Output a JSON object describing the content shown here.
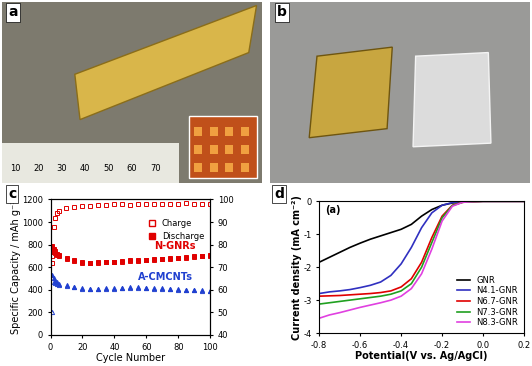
{
  "photos": [
    {
      "panel_label": "a",
      "ruler_labels": [
        10,
        20,
        30,
        40,
        50,
        60,
        70
      ]
    },
    {
      "panel_label": "b"
    }
  ],
  "chart_data": [
    {
      "type": "scatter",
      "panel_label": "c",
      "x_label": "Cycle Number",
      "y_label": "Specific Capacity / mAh g⁻¹",
      "x": [
        1,
        2,
        3,
        4,
        5,
        10,
        15,
        20,
        25,
        30,
        35,
        40,
        45,
        50,
        55,
        60,
        65,
        70,
        75,
        80,
        85,
        90,
        95,
        100
      ],
      "xlim": [
        0,
        100
      ],
      "xticks": [
        0,
        20,
        40,
        60,
        80,
        100
      ],
      "ylim": [
        0,
        1200
      ],
      "yticks": [
        0,
        200,
        400,
        600,
        800,
        1000,
        1200
      ],
      "y2lim": [
        40,
        100
      ],
      "y2ticks": [
        40,
        50,
        60,
        70,
        80,
        90,
        100
      ],
      "legend": "upper right",
      "annotations": [
        {
          "text": "N-GNRs",
          "color": "#e00000"
        },
        {
          "text": "A-CMCNTs",
          "color": "#2040d0"
        }
      ],
      "series": [
        {
          "name": "Charge",
          "color": "#e00000",
          "marker": "open square",
          "values": [
            700,
            735,
            725,
            710,
            698,
            672,
            652,
            640,
            635,
            640,
            645,
            645,
            650,
            655,
            655,
            660,
            665,
            670,
            675,
            680,
            685,
            690,
            695,
            700
          ]
        },
        {
          "name": "Discharge",
          "color": "#e00000",
          "marker": "square",
          "values": [
            790,
            760,
            740,
            720,
            705,
            680,
            660,
            645,
            640,
            645,
            650,
            650,
            655,
            660,
            660,
            665,
            670,
            675,
            680,
            685,
            690,
            695,
            700,
            705
          ]
        },
        {
          "color": "#2040d0",
          "marker": "open triangle",
          "values": [
            200,
            470,
            460,
            450,
            445,
            432,
            420,
            410,
            405,
            405,
            408,
            410,
            413,
            415,
            415,
            413,
            410,
            407,
            405,
            400,
            396,
            394,
            391,
            388
          ]
        },
        {
          "color": "#2040d0",
          "marker": "triangle",
          "values": [
            530,
            500,
            480,
            465,
            455,
            440,
            425,
            415,
            410,
            410,
            412,
            415,
            418,
            420,
            420,
            418,
            415,
            412,
            410,
            405,
            400,
            398,
            395,
            392
          ]
        },
        {
          "color": "#e00000",
          "marker": "open square",
          "axis": "y2",
          "values": [
            72,
            88,
            92,
            94,
            95,
            96,
            96.5,
            97,
            97,
            97.5,
            97.5,
            98,
            98,
            97.5,
            98,
            98,
            98,
            98,
            98,
            98,
            98.5,
            98,
            98,
            98
          ]
        }
      ]
    },
    {
      "type": "line",
      "panel_label": "d",
      "title": "(a)",
      "x_label": "Potential(V vs. Ag/AgCl)",
      "y_label": "Current density (mA cm⁻²)",
      "x": [
        -0.8,
        -0.75,
        -0.7,
        -0.65,
        -0.6,
        -0.55,
        -0.5,
        -0.45,
        -0.4,
        -0.35,
        -0.3,
        -0.25,
        -0.2,
        -0.15,
        -0.1,
        -0.05,
        0,
        0.05,
        0.1,
        0.15,
        0.2
      ],
      "xlim": [
        -0.8,
        0.2
      ],
      "xticks": [
        -0.8,
        -0.6,
        -0.4,
        -0.2,
        {
          "value": 0,
          "label": "0.0"
        },
        0.2
      ],
      "ylim": [
        -4,
        0
      ],
      "yticks": [
        -4,
        -3,
        -2,
        -1,
        0
      ],
      "legend": "lower right",
      "series": [
        {
          "name": "GNR",
          "color": "#000000",
          "line_style": "solid",
          "values": [
            -1.85,
            -1.7,
            -1.55,
            -1.4,
            -1.27,
            -1.15,
            -1.05,
            -0.95,
            -0.85,
            -0.7,
            -0.45,
            -0.25,
            -0.12,
            -0.05,
            -0.02,
            -0.01,
            0,
            0,
            0,
            0,
            0
          ]
        },
        {
          "name": "N4.1-GNR",
          "color": "#3030c0",
          "line_style": "solid",
          "values": [
            -2.8,
            -2.75,
            -2.72,
            -2.68,
            -2.62,
            -2.55,
            -2.45,
            -2.25,
            -1.9,
            -1.4,
            -0.8,
            -0.35,
            -0.12,
            -0.04,
            -0.01,
            0,
            0,
            0,
            0,
            0,
            0
          ]
        },
        {
          "name": "N6.7-GNR",
          "color": "#e00000",
          "line_style": "solid",
          "values": [
            -2.88,
            -2.87,
            -2.86,
            -2.84,
            -2.82,
            -2.8,
            -2.77,
            -2.72,
            -2.6,
            -2.35,
            -1.85,
            -1.1,
            -0.45,
            -0.12,
            -0.03,
            -0.01,
            0,
            0,
            0,
            0,
            0
          ]
        },
        {
          "name": "N7.3-GNR",
          "color": "#20a020",
          "line_style": "solid",
          "values": [
            -3.12,
            -3.08,
            -3.04,
            -3.0,
            -2.96,
            -2.92,
            -2.88,
            -2.82,
            -2.72,
            -2.5,
            -2.0,
            -1.25,
            -0.5,
            -0.13,
            -0.03,
            -0.01,
            0,
            0,
            0,
            0,
            0
          ]
        },
        {
          "name": "N8.3-GNR",
          "color": "#e040e0",
          "line_style": "solid",
          "values": [
            -3.55,
            -3.45,
            -3.38,
            -3.3,
            -3.22,
            -3.15,
            -3.08,
            -3.0,
            -2.88,
            -2.65,
            -2.2,
            -1.45,
            -0.6,
            -0.15,
            -0.03,
            -0.01,
            0,
            0,
            0,
            0,
            0
          ]
        }
      ]
    }
  ]
}
